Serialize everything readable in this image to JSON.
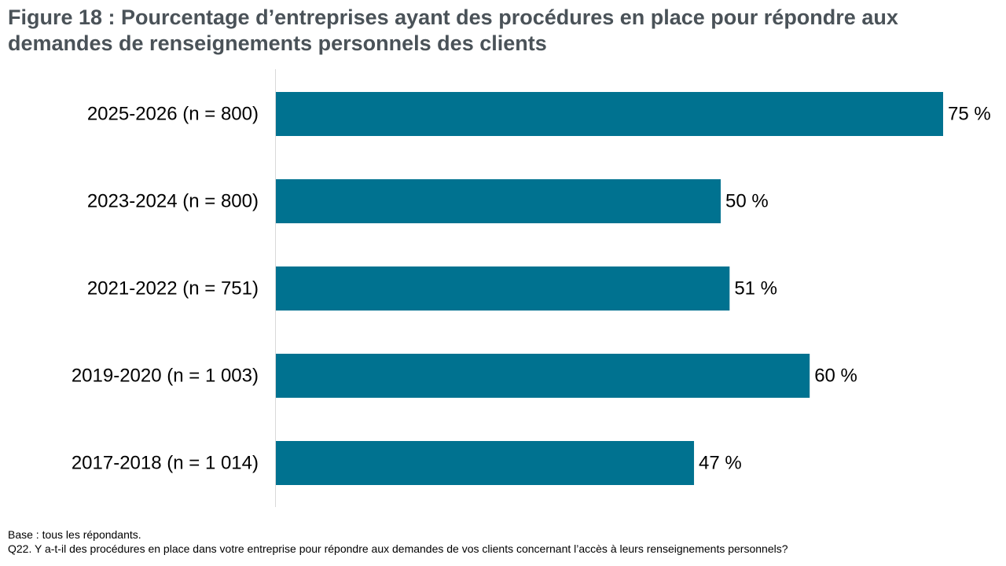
{
  "title": "Figure 18 : Pourcentage d’entreprises ayant des procédures en place pour répondre aux demandes de renseignements personnels des clients",
  "chart_data": {
    "type": "bar",
    "orientation": "horizontal",
    "title": "Figure 18 : Pourcentage d’entreprises ayant des procédures en place pour répondre aux demandes de renseignements personnels des clients",
    "categories": [
      "2025-2026 (n = 800)",
      "2023-2024 (n = 800)",
      "2021-2022 (n = 751)",
      "2019-2020 (n = 1 003)",
      "2017-2018 (n = 1 014)"
    ],
    "values": [
      75,
      50,
      51,
      60,
      47
    ],
    "value_labels": [
      "75 %",
      "50 %",
      "51 %",
      "60 %",
      "47 %"
    ],
    "xlim": [
      0,
      80
    ],
    "grid": false,
    "legend": "none",
    "bar_color": "#007290",
    "axis_color": "#d9d9d9"
  },
  "footnotes": {
    "base": "Base : tous les répondants.",
    "question": "Q22. Y a-t-il des procédures en place dans votre entreprise pour répondre aux demandes de vos clients concernant l’accès à leurs renseignements personnels?"
  }
}
